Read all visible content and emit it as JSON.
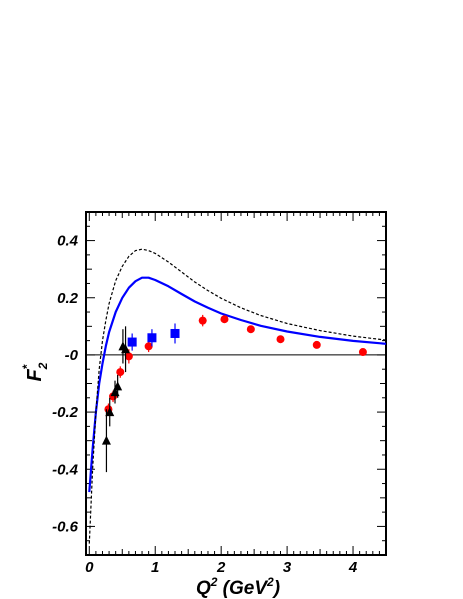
{
  "chart_data": {
    "type": "scatter",
    "title": "",
    "xlabel": {
      "base": "Q",
      "sup1": "2",
      "unit_open": " (GeV",
      "sup2": "2",
      "unit_close": ")"
    },
    "ylabel": {
      "base": "F",
      "sub": "2",
      "sup": "*"
    },
    "xlim": [
      -0.05,
      4.5
    ],
    "ylim": [
      -0.7,
      0.5
    ],
    "xticks": [
      0,
      1,
      2,
      3,
      4
    ],
    "xtick_labels": [
      "0",
      "1",
      "2",
      "3",
      "4"
    ],
    "yticks": [
      0.4,
      0.2,
      0,
      -0.2,
      -0.4,
      -0.6
    ],
    "ytick_labels": [
      "0.4",
      "0.2",
      "-0",
      "-0.2",
      "-0.4",
      "-0.6"
    ],
    "zero_line": true,
    "grid": false,
    "legend": "none",
    "series": [
      {
        "marker": "circle",
        "color": "#ff0000",
        "points": [
          {
            "x": 0.29,
            "y": -0.19,
            "err": 0.02
          },
          {
            "x": 0.36,
            "y": -0.145,
            "err": 0.02
          },
          {
            "x": 0.47,
            "y": -0.06,
            "err": 0.02
          },
          {
            "x": 0.6,
            "y": -0.005,
            "err": 0.025
          },
          {
            "x": 0.9,
            "y": 0.03,
            "err": 0.02
          },
          {
            "x": 1.72,
            "y": 0.12,
            "err": 0.02
          },
          {
            "x": 2.05,
            "y": 0.125,
            "err": 0.01
          },
          {
            "x": 2.45,
            "y": 0.09,
            "err": 0.01
          },
          {
            "x": 2.9,
            "y": 0.055,
            "err": 0.008
          },
          {
            "x": 3.45,
            "y": 0.035,
            "err": 0.008
          },
          {
            "x": 4.15,
            "y": 0.01,
            "err": 0.008
          }
        ]
      },
      {
        "marker": "square",
        "color": "#0000ff",
        "points": [
          {
            "x": 0.65,
            "y": 0.045,
            "err": 0.03
          },
          {
            "x": 0.95,
            "y": 0.06,
            "err": 0.03
          },
          {
            "x": 1.3,
            "y": 0.075,
            "err": 0.035
          }
        ]
      },
      {
        "marker": "triangle",
        "color": "#000000",
        "points": [
          {
            "x": 0.26,
            "y": -0.3,
            "err": 0.11
          },
          {
            "x": 0.31,
            "y": -0.2,
            "err": 0.05
          },
          {
            "x": 0.39,
            "y": -0.13,
            "err": 0.04
          },
          {
            "x": 0.43,
            "y": -0.11,
            "err": 0.04
          },
          {
            "x": 0.51,
            "y": 0.03,
            "err": 0.06
          },
          {
            "x": 0.55,
            "y": 0.02,
            "err": 0.08
          }
        ]
      }
    ],
    "curves": [
      {
        "style": "solid",
        "color": "#0000ff",
        "points": [
          [
            0.0,
            -0.48
          ],
          [
            0.05,
            -0.33
          ],
          [
            0.1,
            -0.2
          ],
          [
            0.15,
            -0.1
          ],
          [
            0.2,
            -0.03
          ],
          [
            0.25,
            0.03
          ],
          [
            0.3,
            0.08
          ],
          [
            0.4,
            0.15
          ],
          [
            0.5,
            0.2
          ],
          [
            0.6,
            0.235
          ],
          [
            0.7,
            0.258
          ],
          [
            0.8,
            0.27
          ],
          [
            0.9,
            0.27
          ],
          [
            1.0,
            0.262
          ],
          [
            1.2,
            0.24
          ],
          [
            1.4,
            0.213
          ],
          [
            1.6,
            0.187
          ],
          [
            1.8,
            0.165
          ],
          [
            2.0,
            0.145
          ],
          [
            2.3,
            0.122
          ],
          [
            2.6,
            0.102
          ],
          [
            3.0,
            0.082
          ],
          [
            3.5,
            0.063
          ],
          [
            4.0,
            0.049
          ],
          [
            4.5,
            0.039
          ]
        ]
      },
      {
        "style": "dashed",
        "color": "#000000",
        "points": [
          [
            0.0,
            -0.66
          ],
          [
            0.05,
            -0.4
          ],
          [
            0.1,
            -0.2
          ],
          [
            0.15,
            -0.05
          ],
          [
            0.2,
            0.05
          ],
          [
            0.25,
            0.12
          ],
          [
            0.3,
            0.18
          ],
          [
            0.4,
            0.26
          ],
          [
            0.5,
            0.31
          ],
          [
            0.6,
            0.345
          ],
          [
            0.7,
            0.365
          ],
          [
            0.8,
            0.37
          ],
          [
            0.9,
            0.365
          ],
          [
            1.0,
            0.355
          ],
          [
            1.2,
            0.325
          ],
          [
            1.4,
            0.29
          ],
          [
            1.6,
            0.255
          ],
          [
            1.8,
            0.225
          ],
          [
            2.0,
            0.198
          ],
          [
            2.3,
            0.165
          ],
          [
            2.6,
            0.138
          ],
          [
            3.0,
            0.11
          ],
          [
            3.5,
            0.085
          ],
          [
            4.0,
            0.066
          ],
          [
            4.5,
            0.052
          ]
        ]
      }
    ]
  }
}
